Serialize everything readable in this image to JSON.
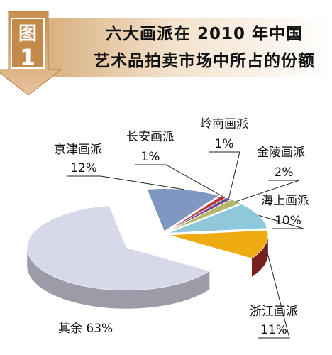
{
  "figure_label": {
    "character": "图",
    "number": "1"
  },
  "chart_data": {
    "type": "pie",
    "title_lines": [
      "六大画派在 2010 年中国",
      "艺术品拍卖市场中所占的份额"
    ],
    "unit": "%",
    "slices": [
      {
        "name": "京津画派",
        "value": 12,
        "label": "12%",
        "color": "#7f97c2"
      },
      {
        "name": "长安画派",
        "value": 1,
        "label": "1%",
        "color": "#b93334"
      },
      {
        "name": "岭南画派",
        "value": 1,
        "label": "1%",
        "color": "#6d4e8e"
      },
      {
        "name": "金陵画派",
        "value": 2,
        "label": "2%",
        "color": "#b5b86a"
      },
      {
        "name": "海上画派",
        "value": 10,
        "label": "10%",
        "color": "#8fc8da"
      },
      {
        "name": "浙江画派",
        "value": 11,
        "label": "11%",
        "color": "#efab12"
      },
      {
        "name": "其余",
        "value": 63,
        "label": "63%",
        "color": "#d7d9ea"
      }
    ],
    "side_color": "#7a1f1f",
    "exploded": "其余"
  }
}
